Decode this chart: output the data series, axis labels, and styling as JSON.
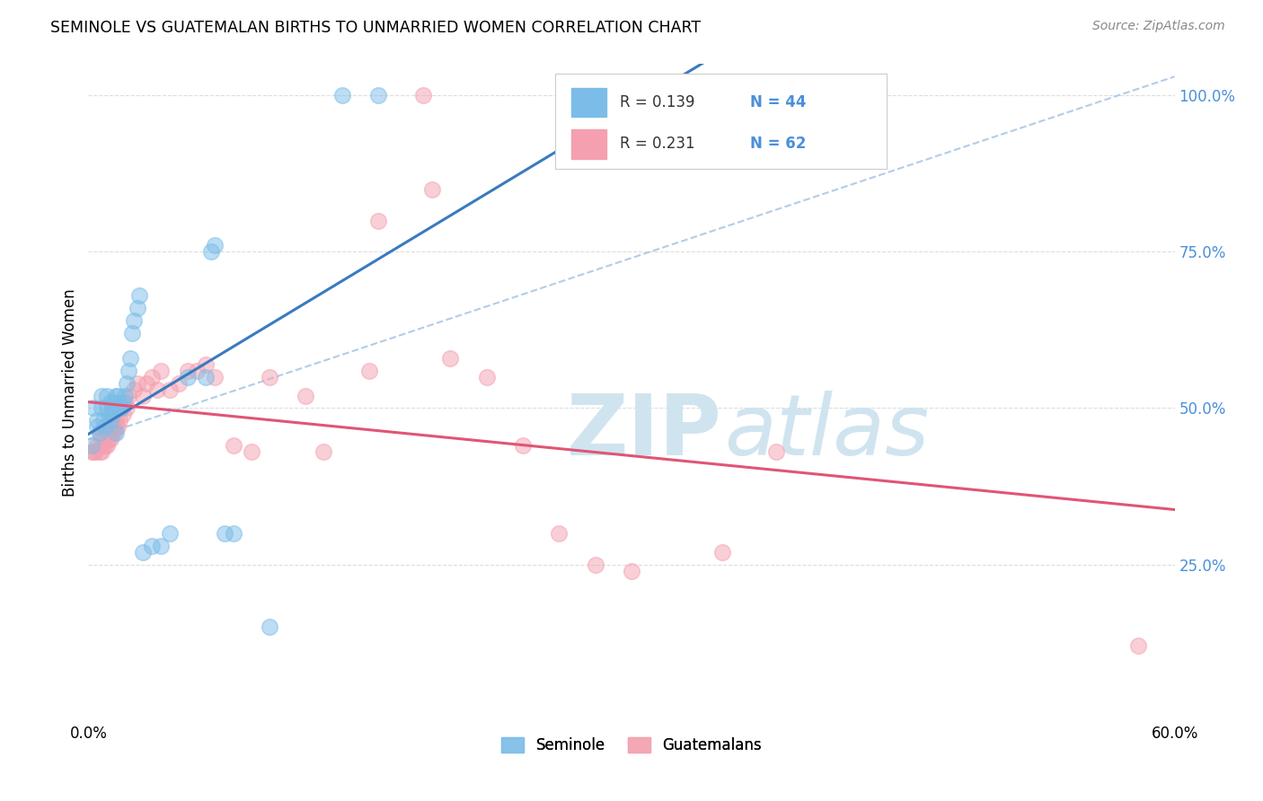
{
  "title": "SEMINOLE VS GUATEMALAN BIRTHS TO UNMARRIED WOMEN CORRELATION CHART",
  "source": "Source: ZipAtlas.com",
  "ylabel": "Births to Unmarried Women",
  "xmin": 0.0,
  "xmax": 0.6,
  "ymin": 0.0,
  "ymax": 1.05,
  "legend_r_seminole": "R = 0.139",
  "legend_n_seminole": "N = 44",
  "legend_r_guatemalan": "R = 0.231",
  "legend_n_guatemalan": "N = 62",
  "seminole_color": "#7bbde8",
  "guatemalan_color": "#f4a0b0",
  "seminole_line_color": "#3a7abf",
  "guatemalan_line_color": "#e05575",
  "trend_dashed_color": "#a8c8e8",
  "watermark_text1": "ZIP",
  "watermark_text2": "atlas",
  "watermark_color": "#d0e4f0",
  "seminole_x": [
    0.002,
    0.003,
    0.005,
    0.005,
    0.006,
    0.007,
    0.007,
    0.008,
    0.009,
    0.01,
    0.01,
    0.011,
    0.012,
    0.012,
    0.013,
    0.013,
    0.014,
    0.015,
    0.015,
    0.016,
    0.017,
    0.018,
    0.019,
    0.02,
    0.021,
    0.022,
    0.023,
    0.024,
    0.025,
    0.027,
    0.028,
    0.03,
    0.035,
    0.04,
    0.045,
    0.055,
    0.065,
    0.068,
    0.07,
    0.075,
    0.08,
    0.1,
    0.14,
    0.16
  ],
  "seminole_y": [
    0.44,
    0.5,
    0.48,
    0.47,
    0.46,
    0.52,
    0.5,
    0.48,
    0.47,
    0.5,
    0.52,
    0.49,
    0.51,
    0.48,
    0.5,
    0.49,
    0.51,
    0.52,
    0.46,
    0.52,
    0.5,
    0.5,
    0.51,
    0.52,
    0.54,
    0.56,
    0.58,
    0.62,
    0.64,
    0.66,
    0.68,
    0.27,
    0.28,
    0.28,
    0.3,
    0.55,
    0.55,
    0.75,
    0.76,
    0.3,
    0.3,
    0.15,
    1.0,
    1.0
  ],
  "guatemalan_x": [
    0.002,
    0.003,
    0.004,
    0.005,
    0.006,
    0.006,
    0.007,
    0.007,
    0.008,
    0.008,
    0.009,
    0.009,
    0.01,
    0.01,
    0.011,
    0.011,
    0.012,
    0.012,
    0.013,
    0.013,
    0.014,
    0.014,
    0.015,
    0.015,
    0.016,
    0.017,
    0.018,
    0.019,
    0.02,
    0.021,
    0.022,
    0.025,
    0.027,
    0.03,
    0.032,
    0.035,
    0.038,
    0.04,
    0.045,
    0.05,
    0.055,
    0.06,
    0.065,
    0.07,
    0.08,
    0.09,
    0.1,
    0.12,
    0.13,
    0.155,
    0.16,
    0.185,
    0.19,
    0.2,
    0.22,
    0.24,
    0.26,
    0.28,
    0.3,
    0.35,
    0.38,
    0.58
  ],
  "guatemalan_y": [
    0.43,
    0.43,
    0.43,
    0.44,
    0.43,
    0.46,
    0.43,
    0.45,
    0.44,
    0.46,
    0.44,
    0.47,
    0.44,
    0.46,
    0.45,
    0.47,
    0.45,
    0.47,
    0.46,
    0.48,
    0.46,
    0.48,
    0.47,
    0.48,
    0.47,
    0.48,
    0.5,
    0.49,
    0.51,
    0.5,
    0.52,
    0.53,
    0.54,
    0.52,
    0.54,
    0.55,
    0.53,
    0.56,
    0.53,
    0.54,
    0.56,
    0.56,
    0.57,
    0.55,
    0.44,
    0.43,
    0.55,
    0.52,
    0.43,
    0.56,
    0.8,
    1.0,
    0.85,
    0.58,
    0.55,
    0.44,
    0.3,
    0.25,
    0.24,
    0.27,
    0.43,
    0.12
  ]
}
